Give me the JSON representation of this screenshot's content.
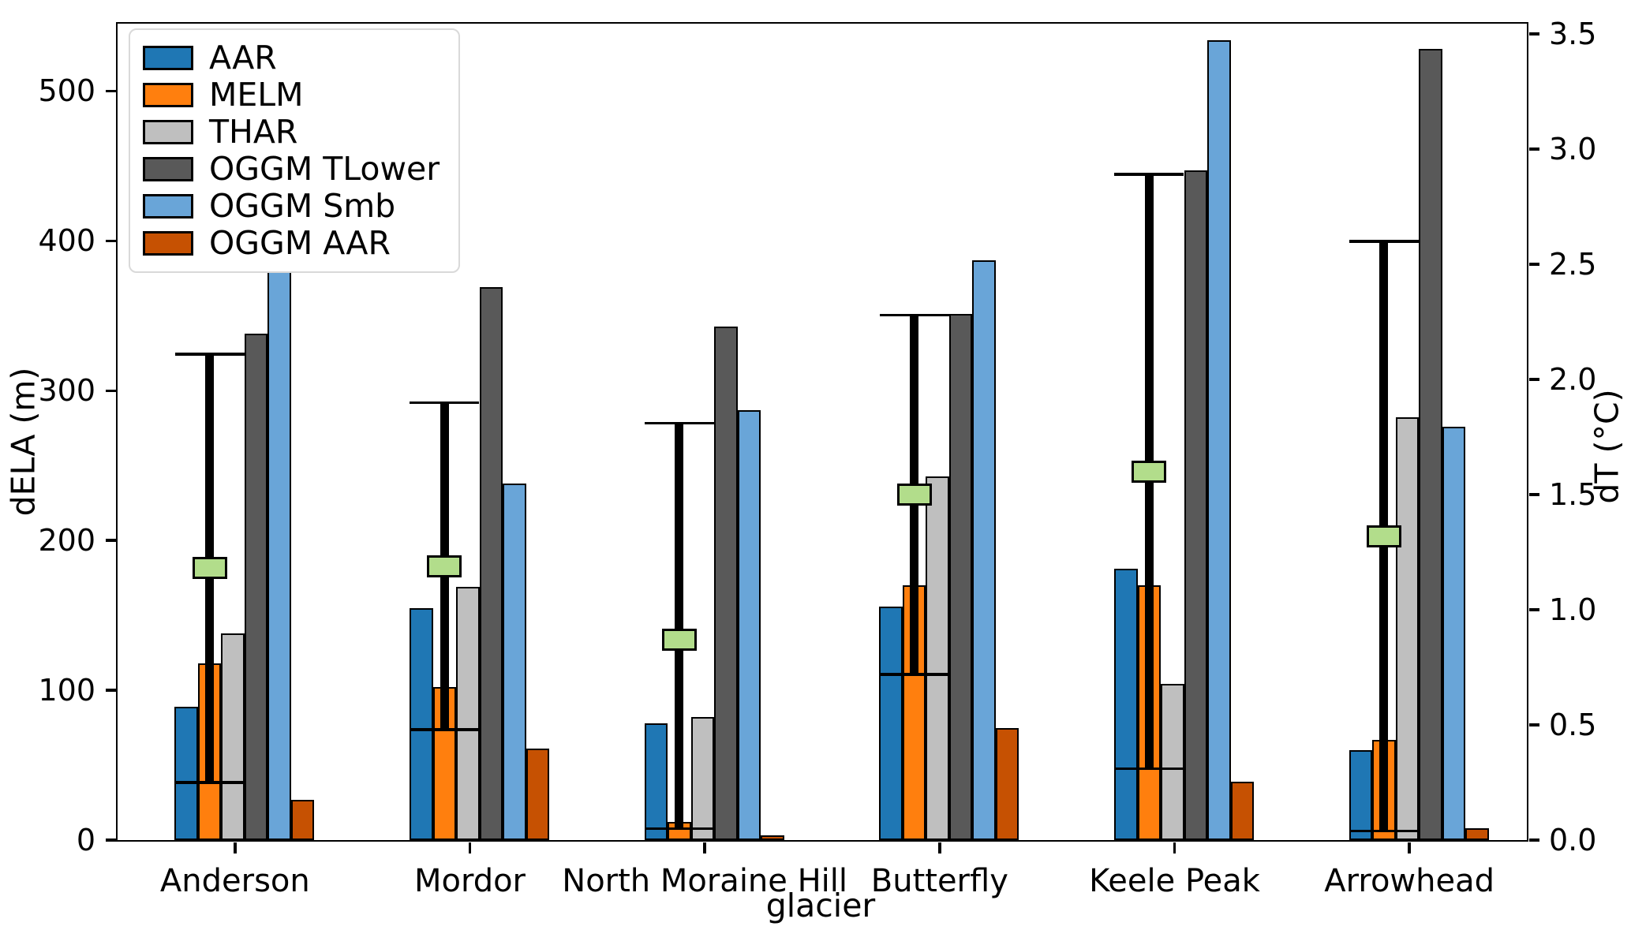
{
  "figure": {
    "x_axis_label": "glacier",
    "y_axis_label_left": "dELA (m)",
    "y_axis_label_right": "dT (°C)"
  },
  "chart_data": {
    "type": "bar",
    "title": "",
    "categories": [
      "Anderson",
      "Mordor",
      "North Moraine Hill",
      "Butterfly",
      "Keele Peak",
      "Arrowhead"
    ],
    "series": [
      {
        "name": "AAR",
        "color": "#1f77b4",
        "axis": "left",
        "values": [
          89,
          155,
          78,
          156,
          181,
          60
        ]
      },
      {
        "name": "MELM",
        "color": "#ff7f0e",
        "axis": "left",
        "values": [
          118,
          102,
          12,
          170,
          170,
          67
        ]
      },
      {
        "name": "THAR",
        "color": "#bfbfbf",
        "axis": "left",
        "values": [
          138,
          169,
          82,
          243,
          104,
          282
        ]
      },
      {
        "name": "OGGM TLower",
        "color": "#595959",
        "axis": "left",
        "values": [
          338,
          369,
          343,
          351,
          447,
          528
        ]
      },
      {
        "name": "OGGM Smb",
        "color": "#69a5d8",
        "axis": "left",
        "values": [
          382,
          238,
          287,
          387,
          534,
          276
        ]
      },
      {
        "name": "OGGM AAR",
        "color": "#c65102",
        "axis": "left",
        "values": [
          27,
          61,
          3,
          75,
          39,
          8
        ]
      }
    ],
    "error_markers": {
      "name": "dT",
      "axis": "right",
      "marker_color": "#b2dd8b",
      "marker_edge_color": "#000000",
      "line_color": "#000000",
      "centers": [
        1.18,
        1.19,
        0.87,
        1.5,
        1.6,
        1.32
      ],
      "low": [
        0.25,
        0.48,
        0.05,
        0.72,
        0.31,
        0.04
      ],
      "high": [
        2.11,
        1.9,
        1.81,
        2.28,
        2.89,
        2.6
      ]
    },
    "axes": {
      "left": {
        "label": "dELA (m)",
        "ticks": [
          0,
          100,
          200,
          300,
          400,
          500
        ],
        "min": 0,
        "max": 545
      },
      "right": {
        "label": "dT (°C)",
        "ticks": [
          0.0,
          0.5,
          1.0,
          1.5,
          2.0,
          2.5,
          3.0,
          3.5
        ],
        "min": 0,
        "max": 3.545
      },
      "x": {
        "label": "glacier"
      }
    },
    "legend": {
      "position": "upper left",
      "entries": [
        "AAR",
        "MELM",
        "THAR",
        "OGGM TLower",
        "OGGM Smb",
        "OGGM AAR"
      ]
    },
    "grid": false
  }
}
